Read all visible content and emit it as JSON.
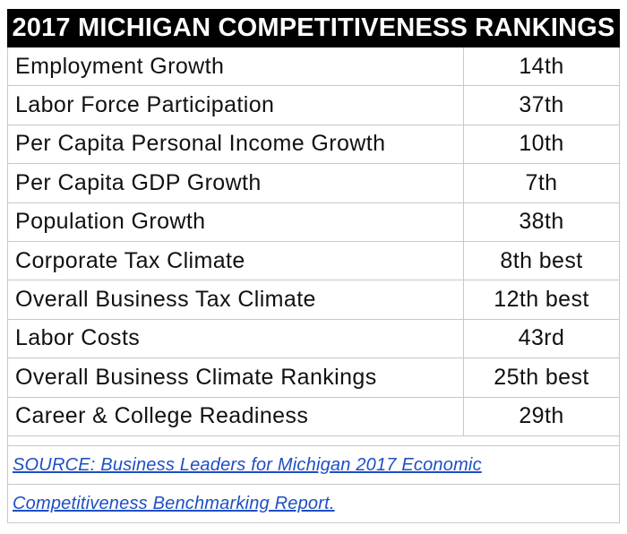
{
  "title": "2017 MICHIGAN COMPETITIVENESS RANKINGS",
  "rows": [
    {
      "metric": "Employment Growth",
      "rank": "14th"
    },
    {
      "metric": "Labor Force Participation",
      "rank": "37th"
    },
    {
      "metric": "Per Capita Personal Income Growth",
      "rank": "10th"
    },
    {
      "metric": "Per Capita GDP Growth",
      "rank": "7th"
    },
    {
      "metric": "Population Growth",
      "rank": "38th"
    },
    {
      "metric": "Corporate Tax Climate",
      "rank": "8th best"
    },
    {
      "metric": "Overall Business Tax Climate",
      "rank": "12th best"
    },
    {
      "metric": "Labor Costs",
      "rank": "43rd"
    },
    {
      "metric": "Overall Business Climate Rankings",
      "rank": "25th best"
    },
    {
      "metric": "Career & College Readiness",
      "rank": "29th"
    }
  ],
  "source": {
    "line1": "SOURCE: Business Leaders for Michigan 2017 Economic",
    "line2": "Competitiveness Benchmarking Report."
  },
  "colors": {
    "title_bg": "#000000",
    "title_text": "#ffffff",
    "link": "#1f4fc4",
    "grid": "#c8c8c8"
  }
}
